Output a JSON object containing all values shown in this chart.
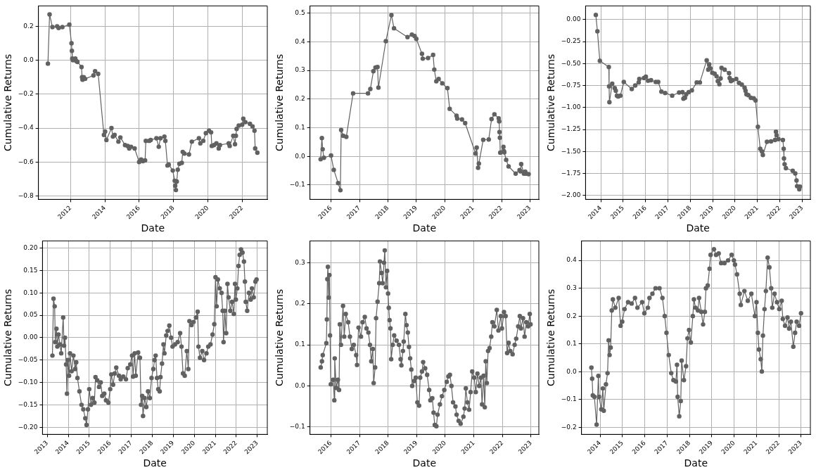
{
  "chart_data": [
    {
      "type": "line",
      "xlabel": "Date",
      "ylabel": "Cumulative Returns",
      "color": "#616161",
      "marker": "circle",
      "grid": true,
      "xlim": [
        "2010-02-15",
        "2023-06-20"
      ],
      "ylim": [
        -0.82,
        0.32
      ],
      "xticks": [
        {
          "value": "2012-01-01",
          "label": "2012"
        },
        {
          "value": "2014-01-01",
          "label": "2014"
        },
        {
          "value": "2016-01-01",
          "label": "2016"
        },
        {
          "value": "2018-01-01",
          "label": "2018"
        },
        {
          "value": "2020-01-01",
          "label": "2020"
        },
        {
          "value": "2022-01-01",
          "label": "2022"
        }
      ],
      "yticks": [
        {
          "value": -0.8,
          "label": "−0.8"
        },
        {
          "value": -0.6,
          "label": "−0.6"
        },
        {
          "value": -0.4,
          "label": "−0.4"
        },
        {
          "value": -0.2,
          "label": "−0.2"
        },
        {
          "value": 0,
          "label": "0.0"
        },
        {
          "value": 0.2,
          "label": "0.2"
        }
      ],
      "x": [
        "2010-09-05",
        "2010-10-10",
        "2010-12-10",
        "2011-03-20",
        "2011-04-20",
        "2011-07-10",
        "2011-12-05",
        "2012-01-20",
        "2012-01-28",
        "2012-02-05",
        "2012-02-20",
        "2012-04-10",
        "2012-05-01",
        "2012-05-25",
        "2012-08-20",
        "2012-09-01",
        "2012-09-10",
        "2012-10-05",
        "2012-11-05",
        "2013-05-01",
        "2013-06-05",
        "2013-08-10",
        "2013-12-10",
        "2014-01-05",
        "2014-02-01",
        "2014-05-20",
        "2014-06-20",
        "2014-07-25",
        "2014-10-15",
        "2014-11-25",
        "2015-03-05",
        "2015-05-01",
        "2015-06-01",
        "2015-07-10",
        "2015-09-25",
        "2015-12-30",
        "2016-02-10",
        "2016-03-20",
        "2016-05-05",
        "2016-05-20",
        "2016-08-01",
        "2016-09-01",
        "2017-01-01",
        "2017-02-20",
        "2017-03-28",
        "2017-06-20",
        "2017-07-10",
        "2017-08-25",
        "2017-09-20",
        "2017-12-15",
        "2018-01-25",
        "2018-02-05",
        "2018-02-20",
        "2018-03-10",
        "2018-04-01",
        "2018-05-05",
        "2018-06-25",
        "2018-07-15",
        "2018-08-20",
        "2018-11-25",
        "2019-01-25",
        "2019-06-25",
        "2019-07-25",
        "2019-09-25",
        "2019-11-20",
        "2020-01-25",
        "2020-03-10",
        "2020-03-25",
        "2020-05-10",
        "2020-07-01",
        "2020-08-20",
        "2020-09-15",
        "2021-03-20",
        "2021-04-10",
        "2021-06-25",
        "2021-08-01",
        "2021-08-20",
        "2021-09-05",
        "2021-10-20",
        "2022-01-01",
        "2022-01-25",
        "2022-03-10",
        "2022-06-15",
        "2022-08-10",
        "2022-09-20",
        "2022-10-05",
        "2022-11-20"
      ],
      "values": [
        -0.02,
        0.27,
        0.195,
        0.2,
        0.19,
        0.195,
        0.21,
        0.1,
        0.055,
        0.01,
        0.0,
        0.01,
        -0.005,
        -0.01,
        -0.04,
        -0.1,
        -0.115,
        -0.1,
        -0.11,
        -0.09,
        -0.065,
        -0.08,
        -0.44,
        -0.42,
        -0.47,
        -0.4,
        -0.45,
        -0.44,
        -0.48,
        -0.455,
        -0.5,
        -0.505,
        -0.52,
        -0.51,
        -0.52,
        -0.6,
        -0.585,
        -0.595,
        -0.59,
        -0.475,
        -0.475,
        -0.47,
        -0.46,
        -0.51,
        -0.46,
        -0.45,
        -0.475,
        -0.62,
        -0.615,
        -0.65,
        -0.71,
        -0.74,
        -0.765,
        -0.715,
        -0.645,
        -0.61,
        -0.605,
        -0.54,
        -0.55,
        -0.555,
        -0.48,
        -0.46,
        -0.49,
        -0.475,
        -0.43,
        -0.415,
        -0.425,
        -0.505,
        -0.5,
        -0.49,
        -0.52,
        -0.5,
        -0.49,
        -0.505,
        -0.445,
        -0.495,
        -0.445,
        -0.405,
        -0.385,
        -0.38,
        -0.345,
        -0.365,
        -0.375,
        -0.39,
        -0.415,
        -0.52,
        -0.545
      ]
    },
    {
      "type": "line",
      "xlabel": "Date",
      "ylabel": "Cumulative Returns",
      "color": "#616161",
      "marker": "circle",
      "grid": true,
      "xlim": [
        "2015-04-05",
        "2023-04-25"
      ],
      "ylim": [
        -0.15,
        0.525
      ],
      "xticks": [
        {
          "value": "2016-01-01",
          "label": "2016"
        },
        {
          "value": "2017-01-01",
          "label": "2017"
        },
        {
          "value": "2018-01-01",
          "label": "2018"
        },
        {
          "value": "2019-01-01",
          "label": "2019"
        },
        {
          "value": "2020-01-01",
          "label": "2020"
        },
        {
          "value": "2021-01-01",
          "label": "2021"
        },
        {
          "value": "2022-01-01",
          "label": "2022"
        },
        {
          "value": "2023-01-01",
          "label": "2023"
        }
      ],
      "yticks": [
        {
          "value": -0.1,
          "label": "−0.1"
        },
        {
          "value": 0,
          "label": "0.0"
        },
        {
          "value": 0.1,
          "label": "0.1"
        },
        {
          "value": 0.2,
          "label": "0.2"
        },
        {
          "value": 0.3,
          "label": "0.3"
        },
        {
          "value": 0.4,
          "label": "0.4"
        },
        {
          "value": 0.5,
          "label": "0.5"
        }
      ],
      "x": [
        "2015-08-20",
        "2015-09-05",
        "2015-09-15",
        "2015-10-01",
        "2016-01-01",
        "2016-02-05",
        "2016-04-01",
        "2016-04-30",
        "2016-05-10",
        "2016-06-05",
        "2016-07-15",
        "2016-10-10",
        "2017-04-20",
        "2017-05-20",
        "2017-06-28",
        "2017-07-25",
        "2017-08-20",
        "2017-09-01",
        "2017-12-05",
        "2018-02-15",
        "2018-03-20",
        "2018-09-10",
        "2018-11-05",
        "2018-12-10",
        "2019-01-01",
        "2019-03-15",
        "2019-03-25",
        "2019-06-01",
        "2019-08-05",
        "2019-08-20",
        "2019-09-15",
        "2019-10-15",
        "2019-12-01",
        "2020-02-05",
        "2020-03-05",
        "2020-06-01",
        "2020-06-10",
        "2020-08-10",
        "2020-09-20",
        "2021-02-01",
        "2021-02-15",
        "2021-03-05",
        "2021-03-15",
        "2021-05-10",
        "2021-07-20",
        "2021-08-25",
        "2021-10-01",
        "2021-11-25",
        "2021-12-01",
        "2021-12-05",
        "2021-12-10",
        "2021-12-15",
        "2022-01-25",
        "2022-02-01",
        "2022-02-05",
        "2022-03-01",
        "2022-04-01",
        "2022-07-01",
        "2022-08-20",
        "2022-09-01",
        "2022-09-10",
        "2022-10-15",
        "2022-11-01",
        "2022-11-10",
        "2022-12-15"
      ],
      "values": [
        -0.01,
        0.064,
        0.025,
        -0.005,
        0.003,
        -0.047,
        -0.093,
        -0.118,
        0.092,
        0.072,
        0.068,
        0.22,
        0.22,
        0.235,
        0.297,
        0.31,
        0.312,
        0.24,
        0.402,
        0.493,
        0.447,
        0.416,
        0.425,
        0.42,
        0.41,
        0.358,
        0.341,
        0.343,
        0.354,
        0.303,
        0.262,
        0.27,
        0.255,
        0.238,
        0.166,
        0.142,
        0.132,
        0.129,
        0.116,
        0.01,
        0.031,
        -0.04,
        -0.025,
        0.058,
        0.059,
        0.13,
        0.147,
        0.133,
        0.122,
        0.085,
        0.065,
        0.013,
        0.033,
        0.018,
        0.014,
        -0.012,
        -0.035,
        -0.06,
        -0.048,
        -0.052,
        -0.027,
        -0.06,
        -0.053,
        -0.06,
        -0.062
      ]
    },
    {
      "type": "line",
      "xlabel": "Date",
      "ylabel": "Cumulative Returns",
      "color": "#616161",
      "marker": "circle",
      "grid": true,
      "xlim": [
        "2013-04-25",
        "2023-05-15"
      ],
      "ylim": [
        -2.045,
        0.155
      ],
      "xticks": [
        {
          "value": "2014-01-01",
          "label": "2014"
        },
        {
          "value": "2015-01-01",
          "label": "2015"
        },
        {
          "value": "2016-01-01",
          "label": "2016"
        },
        {
          "value": "2017-01-01",
          "label": "2017"
        },
        {
          "value": "2018-01-01",
          "label": "2018"
        },
        {
          "value": "2019-01-01",
          "label": "2019"
        },
        {
          "value": "2020-01-01",
          "label": "2020"
        },
        {
          "value": "2021-01-01",
          "label": "2021"
        },
        {
          "value": "2022-01-01",
          "label": "2022"
        },
        {
          "value": "2023-01-01",
          "label": "2023"
        }
      ],
      "yticks": [
        {
          "value": -2,
          "label": "−2.00"
        },
        {
          "value": -1.75,
          "label": "−1.75"
        },
        {
          "value": -1.5,
          "label": "−1.50"
        },
        {
          "value": -1.25,
          "label": "−1.25"
        },
        {
          "value": -1,
          "label": "−1.00"
        },
        {
          "value": -0.75,
          "label": "−0.75"
        },
        {
          "value": -0.5,
          "label": "−0.50"
        },
        {
          "value": -0.25,
          "label": "−0.25"
        },
        {
          "value": 0,
          "label": "0.00"
        }
      ],
      "x": [
        "2013-10-10",
        "2013-11-05",
        "2013-12-15",
        "2014-05-10",
        "2014-05-15",
        "2014-05-20",
        "2014-07-05",
        "2014-08-15",
        "2014-09-01",
        "2014-09-20",
        "2014-10-10",
        "2014-11-15",
        "2015-01-10",
        "2015-05-20",
        "2015-07-15",
        "2015-09-10",
        "2015-09-20",
        "2015-12-05",
        "2016-01-05",
        "2016-02-10",
        "2016-03-30",
        "2016-06-15",
        "2016-07-25",
        "2016-09-15",
        "2016-11-15",
        "2017-03-10",
        "2017-07-01",
        "2017-08-25",
        "2017-09-10",
        "2017-10-05",
        "2017-10-25",
        "2017-12-05",
        "2018-01-25",
        "2018-04-15",
        "2018-06-05",
        "2018-09-25",
        "2018-10-20",
        "2018-11-05",
        "2018-11-25",
        "2018-12-25",
        "2019-02-01",
        "2019-03-05",
        "2019-03-25",
        "2019-04-20",
        "2019-05-10",
        "2019-05-25",
        "2019-07-15",
        "2019-09-25",
        "2019-10-05",
        "2019-10-25",
        "2019-11-20",
        "2020-01-20",
        "2020-03-05",
        "2020-04-20",
        "2020-06-05",
        "2020-06-20",
        "2020-07-05",
        "2020-08-05",
        "2020-09-15",
        "2020-11-01",
        "2020-12-01",
        "2021-01-08",
        "2021-02-15",
        "2021-03-15",
        "2021-03-30",
        "2021-06-05",
        "2021-08-10",
        "2021-10-15",
        "2021-10-30",
        "2021-11-10",
        "2021-12-10",
        "2022-02-20",
        "2022-03-05",
        "2022-03-10",
        "2022-03-20",
        "2022-04-10",
        "2022-07-30",
        "2022-09-10",
        "2022-10-01",
        "2022-10-10",
        "2022-11-15",
        "2022-11-25"
      ],
      "values": [
        0.053,
        -0.133,
        -0.47,
        -0.54,
        -0.76,
        -0.94,
        -0.73,
        -0.78,
        -0.81,
        -0.865,
        -0.875,
        -0.865,
        -0.71,
        -0.79,
        -0.75,
        -0.715,
        -0.675,
        -0.665,
        -0.65,
        -0.695,
        -0.69,
        -0.71,
        -0.71,
        -0.82,
        -0.835,
        -0.865,
        -0.83,
        -0.825,
        -0.9,
        -0.89,
        -0.85,
        -0.825,
        -0.805,
        -0.715,
        -0.715,
        -0.463,
        -0.57,
        -0.51,
        -0.555,
        -0.605,
        -0.615,
        -0.645,
        -0.7,
        -0.735,
        -0.67,
        -0.55,
        -0.57,
        -0.61,
        -0.665,
        -0.7,
        -0.69,
        -0.675,
        -0.72,
        -0.74,
        -0.775,
        -0.81,
        -0.85,
        -0.86,
        -0.89,
        -0.895,
        -0.92,
        -1.22,
        -1.47,
        -1.5,
        -1.54,
        -1.39,
        -1.385,
        -1.37,
        -1.275,
        -1.315,
        -1.36,
        -1.37,
        -1.47,
        -1.58,
        -1.645,
        -1.69,
        -1.72,
        -1.75,
        -1.83,
        -1.895,
        -1.93,
        -1.9
      ]
    },
    {
      "type": "line",
      "xlabel": "Date",
      "ylabel": "Cumulative Returns",
      "color": "#616161",
      "marker": "circle",
      "grid": true,
      "xlim": [
        "2012-10-10",
        "2023-06-25"
      ],
      "ylim": [
        -0.216,
        0.216
      ],
      "xticks": [
        {
          "value": "2013-01-01",
          "label": "2013"
        },
        {
          "value": "2014-01-01",
          "label": "2014"
        },
        {
          "value": "2015-01-01",
          "label": "2015"
        },
        {
          "value": "2016-01-01",
          "label": "2016"
        },
        {
          "value": "2017-01-01",
          "label": "2017"
        },
        {
          "value": "2018-01-01",
          "label": "2018"
        },
        {
          "value": "2019-01-01",
          "label": "2019"
        },
        {
          "value": "2020-01-01",
          "label": "2020"
        },
        {
          "value": "2021-01-01",
          "label": "2021"
        },
        {
          "value": "2022-01-01",
          "label": "2022"
        },
        {
          "value": "2023-01-01",
          "label": "2023"
        }
      ],
      "yticks": [
        {
          "value": -0.2,
          "label": "−0.20"
        },
        {
          "value": -0.15,
          "label": "−0.15"
        },
        {
          "value": -0.1,
          "label": "−0.10"
        },
        {
          "value": -0.05,
          "label": "−0.05"
        },
        {
          "value": 0,
          "label": "0.00"
        },
        {
          "value": 0.05,
          "label": "0.05"
        },
        {
          "value": 0.1,
          "label": "0.10"
        },
        {
          "value": 0.15,
          "label": "0.15"
        },
        {
          "value": 0.2,
          "label": "0.20"
        }
      ],
      "x": [
        "2013-04-01",
        "2013-04-20",
        "2013-05-10",
        "2013-05-20",
        "2013-06-10",
        "2013-06-25",
        "2013-07-15",
        "2013-08-10",
        "2013-09-01",
        "2013-10-05",
        "2013-10-20",
        "2013-11-05",
        "2013-11-25",
        "2013-12-10",
        "2013-12-25",
        "2014-01-15",
        "2014-02-01",
        "2014-03-01",
        "2014-04-01",
        "2014-05-01",
        "2014-05-20",
        "2014-06-10",
        "2014-07-15",
        "2014-08-20",
        "2014-09-20",
        "2014-10-25",
        "2014-11-15",
        "2014-12-10",
        "2015-01-01",
        "2015-02-01",
        "2015-03-01",
        "2015-04-01",
        "2015-04-20",
        "2015-05-20",
        "2015-06-20",
        "2015-07-20",
        "2015-08-15",
        "2015-09-20",
        "2015-10-20",
        "2015-12-01",
        "2016-01-01",
        "2016-01-20",
        "2016-02-20",
        "2016-03-20",
        "2016-04-15",
        "2016-06-01",
        "2016-07-01",
        "2016-08-15",
        "2016-10-01",
        "2016-11-01",
        "2016-12-15",
        "2017-01-15",
        "2017-02-01",
        "2017-03-01",
        "2017-03-20",
        "2017-05-01",
        "2017-06-01",
        "2017-06-20",
        "2017-07-10",
        "2017-07-25",
        "2017-08-20",
        "2017-09-20",
        "2017-10-20",
        "2017-11-20",
        "2017-12-20",
        "2018-01-20",
        "2018-02-10",
        "2018-03-01",
        "2018-03-25",
        "2018-04-15",
        "2018-05-10",
        "2018-05-25",
        "2018-06-20",
        "2018-07-15",
        "2018-08-01",
        "2018-09-01",
        "2018-09-25",
        "2018-10-25",
        "2018-11-25",
        "2018-12-20",
        "2019-02-01",
        "2019-03-20",
        "2019-05-01",
        "2019-05-25",
        "2019-06-20",
        "2019-07-20",
        "2019-08-25",
        "2019-09-20",
        "2019-10-10",
        "2019-11-15",
        "2019-12-20",
        "2020-02-01",
        "2020-03-01",
        "2020-03-15",
        "2020-04-10",
        "2020-05-20",
        "2020-06-20",
        "2020-08-01",
        "2020-09-01",
        "2020-10-10",
        "2020-11-15",
        "2020-12-15",
        "2021-01-05",
        "2021-01-25",
        "2021-02-15",
        "2021-03-20",
        "2021-04-20",
        "2021-05-10",
        "2021-05-25",
        "2021-06-15",
        "2021-07-10",
        "2021-08-01",
        "2021-08-20",
        "2021-09-20",
        "2021-10-20",
        "2021-11-20",
        "2021-12-10",
        "2021-12-25",
        "2022-01-20",
        "2022-02-10",
        "2022-03-01",
        "2022-03-25",
        "2022-04-20",
        "2022-05-15",
        "2022-06-01",
        "2022-06-15",
        "2022-07-10",
        "2022-08-10",
        "2022-09-10",
        "2022-10-01",
        "2022-11-01",
        "2022-12-01",
        "2022-12-20"
      ],
      "values": [
        -0.04,
        0.087,
        0.07,
        -0.01,
        0.02,
        -0.02,
        0.007,
        -0.015,
        -0.035,
        0.045,
        -0.018,
        0.0,
        -0.06,
        -0.125,
        -0.05,
        -0.085,
        -0.035,
        -0.075,
        -0.04,
        -0.07,
        -0.055,
        -0.09,
        -0.12,
        -0.15,
        -0.16,
        -0.18,
        -0.195,
        -0.16,
        -0.115,
        -0.15,
        -0.135,
        -0.145,
        -0.088,
        -0.095,
        -0.11,
        -0.1,
        -0.13,
        -0.125,
        -0.14,
        -0.145,
        -0.115,
        -0.082,
        -0.105,
        -0.08,
        -0.067,
        -0.085,
        -0.093,
        -0.087,
        -0.093,
        -0.068,
        -0.06,
        -0.04,
        -0.087,
        -0.035,
        -0.085,
        -0.033,
        -0.045,
        -0.15,
        -0.13,
        -0.175,
        -0.135,
        -0.155,
        -0.12,
        -0.135,
        -0.09,
        -0.07,
        -0.05,
        -0.04,
        -0.09,
        -0.115,
        -0.12,
        -0.088,
        -0.058,
        -0.015,
        -0.035,
        0.005,
        0.015,
        0.027,
        0.0,
        -0.02,
        -0.015,
        -0.01,
        0.01,
        -0.02,
        -0.08,
        -0.085,
        -0.03,
        -0.07,
        0.037,
        0.028,
        0.035,
        0.045,
        0.058,
        -0.02,
        -0.045,
        -0.03,
        -0.05,
        -0.035,
        -0.02,
        -0.015,
        0.007,
        0.03,
        0.135,
        0.07,
        0.13,
        0.11,
        0.1,
        0.06,
        -0.01,
        0.06,
        0.01,
        0.12,
        0.09,
        0.06,
        0.08,
        0.053,
        0.12,
        0.085,
        0.11,
        0.16,
        0.185,
        0.197,
        0.19,
        0.17,
        0.125,
        0.08,
        0.06,
        0.1,
        0.085,
        0.11,
        0.09,
        0.125,
        0.13
      ]
    },
    {
      "type": "line",
      "xlabel": "Date",
      "ylabel": "Cumulative Returns",
      "color": "#616161",
      "marker": "circle",
      "grid": true,
      "xlim": [
        "2015-04-10",
        "2023-04-10"
      ],
      "ylim": [
        -0.118,
        0.353
      ],
      "xticks": [
        {
          "value": "2016-01-01",
          "label": "2016"
        },
        {
          "value": "2017-01-01",
          "label": "2017"
        },
        {
          "value": "2018-01-01",
          "label": "2018"
        },
        {
          "value": "2019-01-01",
          "label": "2019"
        },
        {
          "value": "2020-01-01",
          "label": "2020"
        },
        {
          "value": "2021-01-01",
          "label": "2021"
        },
        {
          "value": "2022-01-01",
          "label": "2022"
        },
        {
          "value": "2023-01-01",
          "label": "2023"
        }
      ],
      "yticks": [
        {
          "value": -0.1,
          "label": "−0.1"
        },
        {
          "value": 0,
          "label": "0.0"
        },
        {
          "value": 0.1,
          "label": "0.1"
        },
        {
          "value": 0.2,
          "label": "0.2"
        },
        {
          "value": 0.3,
          "label": "0.3"
        }
      ],
      "x": [
        "2015-08-25",
        "2015-09-10",
        "2015-09-20",
        "2015-11-05",
        "2015-11-12",
        "2015-11-18",
        "2015-11-25",
        "2015-12-05",
        "2015-12-15",
        "2015-12-22",
        "2016-01-01",
        "2016-02-01",
        "2016-02-15",
        "2016-02-20",
        "2016-03-10",
        "2016-04-01",
        "2016-04-15",
        "2016-04-25",
        "2016-05-10",
        "2016-06-05",
        "2016-06-20",
        "2016-07-10",
        "2016-08-10",
        "2016-09-01",
        "2016-09-25",
        "2016-10-20",
        "2016-11-20",
        "2016-12-01",
        "2016-12-20",
        "2017-01-20",
        "2017-02-10",
        "2017-03-10",
        "2017-04-01",
        "2017-04-25",
        "2017-05-15",
        "2017-06-01",
        "2017-06-20",
        "2017-07-01",
        "2017-07-20",
        "2017-08-01",
        "2017-08-20",
        "2017-09-10",
        "2017-09-20",
        "2017-10-10",
        "2017-10-25",
        "2017-11-10",
        "2017-11-20",
        "2017-12-05",
        "2017-12-20",
        "2018-01-01",
        "2018-01-10",
        "2018-01-20",
        "2018-02-01",
        "2018-02-10",
        "2018-03-01",
        "2018-03-20",
        "2018-04-20",
        "2018-05-20",
        "2018-06-10",
        "2018-06-20",
        "2018-07-10",
        "2018-07-20",
        "2018-08-10",
        "2018-08-25",
        "2018-09-10",
        "2018-09-25",
        "2018-10-10",
        "2018-10-25",
        "2018-11-05",
        "2018-12-01",
        "2018-12-20",
        "2019-01-10",
        "2019-02-01",
        "2019-02-15",
        "2019-03-10",
        "2019-03-25",
        "2019-04-20",
        "2019-05-15",
        "2019-06-10",
        "2019-06-25",
        "2019-07-20",
        "2019-08-05",
        "2019-08-20",
        "2019-09-10",
        "2019-09-25",
        "2019-10-25",
        "2019-11-20",
        "2019-12-20",
        "2020-01-20",
        "2020-02-10",
        "2020-03-01",
        "2020-03-20",
        "2020-04-10",
        "2020-05-10",
        "2020-05-25",
        "2020-06-20",
        "2020-07-15",
        "2020-08-20",
        "2020-09-05",
        "2020-09-20",
        "2020-10-10",
        "2020-11-01",
        "2020-11-20",
        "2020-12-10",
        "2021-01-05",
        "2021-01-25",
        "2021-02-15",
        "2021-03-10",
        "2021-04-01",
        "2021-04-15",
        "2021-05-05",
        "2021-05-20",
        "2021-06-01",
        "2021-06-15",
        "2021-07-01",
        "2021-07-20",
        "2021-08-10",
        "2021-08-25",
        "2021-09-20",
        "2021-10-20",
        "2021-11-10",
        "2021-12-10",
        "2021-12-25",
        "2022-01-20",
        "2022-02-10",
        "2022-03-01",
        "2022-03-20",
        "2022-04-10",
        "2022-05-10",
        "2022-06-05",
        "2022-06-25",
        "2022-07-20",
        "2022-08-10",
        "2022-08-25",
        "2022-09-20",
        "2022-10-10",
        "2022-11-01",
        "2022-11-25",
        "2022-12-15",
        "2022-12-25"
      ],
      "values": [
        0.045,
        0.06,
        0.075,
        0.104,
        0.162,
        0.26,
        0.29,
        0.215,
        0.27,
        0.123,
        0.004,
        0.015,
        -0.035,
        0.067,
        -0.005,
        0.015,
        -0.01,
        0.15,
        0.1,
        0.195,
        0.12,
        0.175,
        0.155,
        0.12,
        0.09,
        0.1,
        0.075,
        0.051,
        0.142,
        0.12,
        0.155,
        0.168,
        0.14,
        0.13,
        0.1,
        0.06,
        0.09,
        0.007,
        0.045,
        0.165,
        0.205,
        0.25,
        0.303,
        0.275,
        0.25,
        0.3,
        0.33,
        0.24,
        0.28,
        0.225,
        0.19,
        0.16,
        0.14,
        0.065,
        0.1,
        0.123,
        0.11,
        0.1,
        0.065,
        0.05,
        0.085,
        0.108,
        0.175,
        0.148,
        0.13,
        0.095,
        0.067,
        0.04,
        0.0,
        0.012,
        0.02,
        -0.04,
        -0.048,
        0.02,
        0.035,
        0.058,
        0.043,
        0.027,
        -0.01,
        -0.035,
        -0.03,
        -0.065,
        -0.095,
        -0.098,
        -0.07,
        -0.045,
        -0.025,
        -0.01,
        0.01,
        0.023,
        0.027,
        0.0,
        -0.04,
        -0.05,
        -0.07,
        -0.085,
        -0.092,
        -0.075,
        -0.055,
        -0.006,
        -0.04,
        -0.058,
        -0.015,
        0.035,
        0.02,
        -0.015,
        0.03,
        0.0,
        0.02,
        -0.045,
        0.025,
        -0.052,
        0.06,
        0.007,
        0.085,
        0.092,
        0.12,
        0.155,
        0.145,
        0.185,
        0.135,
        0.17,
        0.14,
        0.18,
        0.17,
        0.08,
        0.105,
        0.085,
        0.077,
        0.1,
        0.115,
        0.145,
        0.17,
        0.14,
        0.165,
        0.12,
        0.155,
        0.145,
        0.175,
        0.15
      ]
    },
    {
      "type": "line",
      "xlabel": "Date",
      "ylabel": "Cumulative Returns",
      "color": "#616161",
      "marker": "circle",
      "grid": true,
      "xlim": [
        "2013-03-01",
        "2023-06-01"
      ],
      "ylim": [
        -0.225,
        0.47
      ],
      "xticks": [
        {
          "value": "2014-01-01",
          "label": "2014"
        },
        {
          "value": "2015-01-01",
          "label": "2015"
        },
        {
          "value": "2016-01-01",
          "label": "2016"
        },
        {
          "value": "2017-01-01",
          "label": "2017"
        },
        {
          "value": "2018-01-01",
          "label": "2018"
        },
        {
          "value": "2019-01-01",
          "label": "2019"
        },
        {
          "value": "2020-01-01",
          "label": "2020"
        },
        {
          "value": "2021-01-01",
          "label": "2021"
        },
        {
          "value": "2022-01-01",
          "label": "2022"
        },
        {
          "value": "2023-01-01",
          "label": "2023"
        }
      ],
      "yticks": [
        {
          "value": -0.2,
          "label": "−0.2"
        },
        {
          "value": -0.1,
          "label": "−0.1"
        },
        {
          "value": 0,
          "label": "0.0"
        },
        {
          "value": 0.1,
          "label": "0.1"
        },
        {
          "value": 0.2,
          "label": "0.2"
        },
        {
          "value": 0.3,
          "label": "0.3"
        },
        {
          "value": 0.4,
          "label": "0.4"
        }
      ],
      "x": [
        "2013-08-10",
        "2013-08-22",
        "2013-09-02",
        "2013-09-28",
        "2013-11-03",
        "2013-12-02",
        "2013-12-13",
        "2014-01-19",
        "2014-02-13",
        "2014-02-28",
        "2014-04-05",
        "2014-05-01",
        "2014-05-19",
        "2014-06-03",
        "2014-06-21",
        "2014-07-09",
        "2014-07-27",
        "2014-09-05",
        "2014-10-30",
        "2014-12-01",
        "2014-12-27",
        "2015-02-03",
        "2015-04-02",
        "2015-05-30",
        "2015-07-24",
        "2015-09-02",
        "2015-11-18",
        "2015-12-24",
        "2016-02-20",
        "2016-03-17",
        "2016-05-04",
        "2016-06-24",
        "2016-08-28",
        "2016-10-15",
        "2016-11-21",
        "2016-12-20",
        "2017-01-26",
        "2017-03-08",
        "2017-04-13",
        "2017-05-23",
        "2017-06-10",
        "2017-06-21",
        "2017-07-17",
        "2017-08-11",
        "2017-08-25",
        "2017-10-01",
        "2017-11-06",
        "2017-11-28",
        "2017-12-24",
        "2018-01-23",
        "2018-02-24",
        "2018-03-14",
        "2018-04-09",
        "2018-05-19",
        "2018-06-06",
        "2018-07-13",
        "2018-08-11",
        "2018-09-09",
        "2018-09-27",
        "2018-10-26",
        "2018-11-24",
        "2018-12-12",
        "2019-02-06",
        "2019-03-11",
        "2019-04-23",
        "2019-06-02",
        "2019-07-27",
        "2019-09-24",
        "2019-11-21",
        "2019-12-28",
        "2020-01-15",
        "2020-02-17",
        "2020-04-01",
        "2020-04-19",
        "2020-06-17",
        "2020-08-11",
        "2020-10-09",
        "2020-12-06",
        "2021-01-01",
        "2021-01-23",
        "2021-02-10",
        "2021-03-11",
        "2021-03-29",
        "2021-04-16",
        "2021-05-12",
        "2021-06-03",
        "2021-07-02",
        "2021-07-31",
        "2021-08-29",
        "2021-09-16",
        "2021-10-23",
        "2021-12-02",
        "2022-01-08",
        "2022-02-17",
        "2022-03-07",
        "2022-04-13",
        "2022-05-23",
        "2022-06-18",
        "2022-07-17",
        "2022-08-26",
        "2022-09-24",
        "2022-10-20",
        "2022-11-29",
        "2022-12-30"
      ],
      "values": [
        0.015,
        -0.025,
        -0.085,
        -0.09,
        -0.19,
        -0.015,
        -0.09,
        -0.135,
        -0.06,
        -0.14,
        -0.045,
        -0.005,
        0.113,
        0.06,
        0.087,
        0.22,
        0.26,
        0.23,
        0.265,
        0.165,
        0.18,
        0.225,
        0.25,
        0.245,
        0.265,
        0.23,
        0.25,
        0.21,
        0.23,
        0.265,
        0.28,
        0.3,
        0.3,
        0.265,
        0.2,
        0.14,
        0.06,
        -0.005,
        -0.03,
        -0.035,
        0.025,
        -0.09,
        -0.16,
        -0.105,
        0.04,
        -0.03,
        0.02,
        0.12,
        0.15,
        0.105,
        0.2,
        0.26,
        0.23,
        0.22,
        0.265,
        0.215,
        0.17,
        0.215,
        0.3,
        0.31,
        0.37,
        0.42,
        0.44,
        0.42,
        0.425,
        0.39,
        0.39,
        0.4,
        0.42,
        0.4,
        0.385,
        0.35,
        0.28,
        0.24,
        0.29,
        0.255,
        0.28,
        0.2,
        0.25,
        0.14,
        0.08,
        0.045,
        0.001,
        0.13,
        0.225,
        0.29,
        0.41,
        0.375,
        0.3,
        0.23,
        0.28,
        0.25,
        0.225,
        0.255,
        0.19,
        0.165,
        0.195,
        0.155,
        0.18,
        0.09,
        0.14,
        0.18,
        0.165,
        0.21
      ]
    }
  ]
}
